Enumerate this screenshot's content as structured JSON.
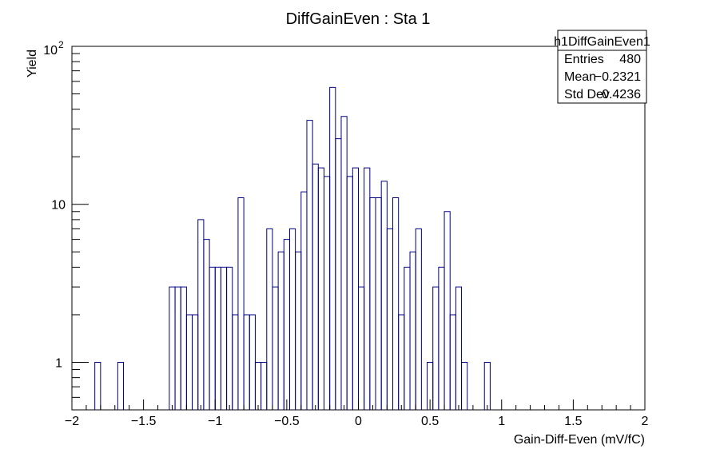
{
  "chart_data": {
    "type": "histogram",
    "title": "DiffGainEven : Sta 1",
    "xlabel": "Gain-Diff-Even (mV/fC)",
    "ylabel": "Yield",
    "xlim": [
      -2,
      2
    ],
    "ylim": [
      0.5,
      100
    ],
    "y_scale": "log",
    "grid": false,
    "line_color": "#000080",
    "x_ticks": [
      -2,
      -1.5,
      -1,
      -0.5,
      0,
      0.5,
      1,
      1.5,
      2
    ],
    "x_tick_labels": [
      "−2",
      "−1.5",
      "−1",
      "−0.5",
      "0",
      "0.5",
      "1",
      "1.5",
      "2"
    ],
    "y_tick_labels": [
      "1",
      "10",
      "10"
    ],
    "y_tick_exponent": "2",
    "bin_width": 0.04,
    "bins": [
      {
        "x0": -1.84,
        "count": 1
      },
      {
        "x0": -1.68,
        "count": 1
      },
      {
        "x0": -1.32,
        "count": 3
      },
      {
        "x0": -1.28,
        "count": 3
      },
      {
        "x0": -1.24,
        "count": 3
      },
      {
        "x0": -1.2,
        "count": 2
      },
      {
        "x0": -1.16,
        "count": 2
      },
      {
        "x0": -1.12,
        "count": 8
      },
      {
        "x0": -1.08,
        "count": 6
      },
      {
        "x0": -1.04,
        "count": 4
      },
      {
        "x0": -1.0,
        "count": 4
      },
      {
        "x0": -0.96,
        "count": 4
      },
      {
        "x0": -0.92,
        "count": 4
      },
      {
        "x0": -0.88,
        "count": 2
      },
      {
        "x0": -0.84,
        "count": 11
      },
      {
        "x0": -0.8,
        "count": 2
      },
      {
        "x0": -0.76,
        "count": 2
      },
      {
        "x0": -0.72,
        "count": 1
      },
      {
        "x0": -0.68,
        "count": 1
      },
      {
        "x0": -0.64,
        "count": 7
      },
      {
        "x0": -0.6,
        "count": 3
      },
      {
        "x0": -0.56,
        "count": 5
      },
      {
        "x0": -0.52,
        "count": 6
      },
      {
        "x0": -0.48,
        "count": 7
      },
      {
        "x0": -0.44,
        "count": 5
      },
      {
        "x0": -0.4,
        "count": 12
      },
      {
        "x0": -0.36,
        "count": 34
      },
      {
        "x0": -0.32,
        "count": 18
      },
      {
        "x0": -0.28,
        "count": 17
      },
      {
        "x0": -0.24,
        "count": 15
      },
      {
        "x0": -0.2,
        "count": 55
      },
      {
        "x0": -0.16,
        "count": 26
      },
      {
        "x0": -0.12,
        "count": 36
      },
      {
        "x0": -0.08,
        "count": 15
      },
      {
        "x0": -0.04,
        "count": 17
      },
      {
        "x0": 0.0,
        "count": 3
      },
      {
        "x0": 0.04,
        "count": 17
      },
      {
        "x0": 0.08,
        "count": 11
      },
      {
        "x0": 0.12,
        "count": 11
      },
      {
        "x0": 0.16,
        "count": 14
      },
      {
        "x0": 0.2,
        "count": 7
      },
      {
        "x0": 0.24,
        "count": 11
      },
      {
        "x0": 0.28,
        "count": 2
      },
      {
        "x0": 0.32,
        "count": 4
      },
      {
        "x0": 0.36,
        "count": 5
      },
      {
        "x0": 0.4,
        "count": 7
      },
      {
        "x0": 0.48,
        "count": 1
      },
      {
        "x0": 0.52,
        "count": 3
      },
      {
        "x0": 0.56,
        "count": 4
      },
      {
        "x0": 0.6,
        "count": 9
      },
      {
        "x0": 0.64,
        "count": 2
      },
      {
        "x0": 0.68,
        "count": 3
      },
      {
        "x0": 0.72,
        "count": 1
      },
      {
        "x0": 0.88,
        "count": 1
      }
    ],
    "stats": {
      "name": "h1DiffGainEven1",
      "rows": [
        {
          "label": "Entries",
          "value": "480"
        },
        {
          "label": "Mean",
          "value": "−0.2321"
        },
        {
          "label": "Std Dev",
          "value": "0.4236"
        }
      ]
    }
  }
}
